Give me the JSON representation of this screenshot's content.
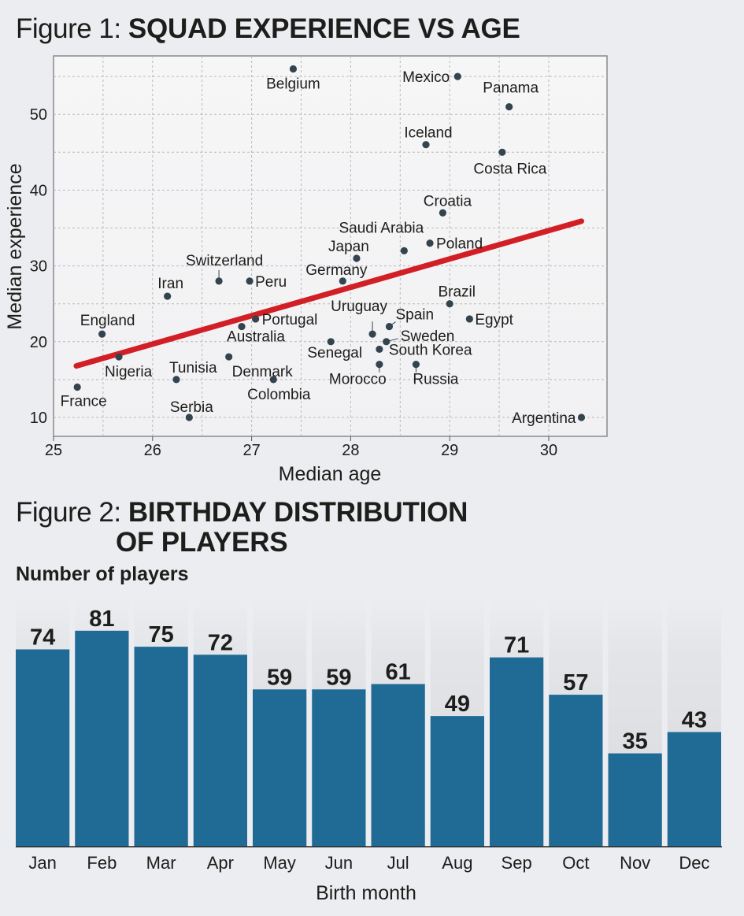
{
  "figure1": {
    "prefix": "Figure 1: ",
    "title": "SQUAD EXPERIENCE VS AGE"
  },
  "figure2": {
    "prefix": "Figure 2: ",
    "title_line1": "BIRTHDAY DISTRIBUTION",
    "title_line2": "OF PLAYERS",
    "ylabel": "Number of players"
  },
  "colors": {
    "point": "#33444f",
    "trend": "#d21f26",
    "bar": "#1f6b95",
    "grid": "#b9b9bd",
    "plot_bg": "#f3f3f4"
  },
  "chart_data": [
    {
      "type": "scatter",
      "xlabel": "Median age",
      "ylabel": "Median experience",
      "xlim": [
        25,
        30.5
      ],
      "ylim": [
        8.5,
        57.5
      ],
      "xticks": [
        25,
        26,
        27,
        28,
        29,
        30
      ],
      "yticks": [
        10,
        20,
        30,
        40,
        50
      ],
      "grid": true,
      "trendline": {
        "x": [
          25.23,
          30.33
        ],
        "y": [
          16.8,
          35.9
        ]
      },
      "points": [
        {
          "label": "Belgium",
          "x": 27.42,
          "y": 56
        },
        {
          "label": "Mexico",
          "x": 29.08,
          "y": 55
        },
        {
          "label": "Panama",
          "x": 29.6,
          "y": 51
        },
        {
          "label": "Iceland",
          "x": 28.76,
          "y": 46
        },
        {
          "label": "Costa Rica",
          "x": 29.53,
          "y": 45
        },
        {
          "label": "Croatia",
          "x": 28.93,
          "y": 37
        },
        {
          "label": "Poland",
          "x": 28.8,
          "y": 33
        },
        {
          "label": "Saudi Arabia",
          "x": 28.54,
          "y": 32
        },
        {
          "label": "Japan",
          "x": 28.06,
          "y": 31
        },
        {
          "label": "Germany",
          "x": 27.92,
          "y": 28
        },
        {
          "label": "Switzerland",
          "x": 26.67,
          "y": 28
        },
        {
          "label": "Peru",
          "x": 26.98,
          "y": 28
        },
        {
          "label": "Iran",
          "x": 26.15,
          "y": 26
        },
        {
          "label": "Brazil",
          "x": 29.0,
          "y": 25
        },
        {
          "label": "Portugal",
          "x": 27.04,
          "y": 23
        },
        {
          "label": "Egypt",
          "x": 29.2,
          "y": 23
        },
        {
          "label": "Australia",
          "x": 26.9,
          "y": 22
        },
        {
          "label": "Spain",
          "x": 28.39,
          "y": 22
        },
        {
          "label": "England",
          "x": 25.49,
          "y": 21
        },
        {
          "label": "Uruguay",
          "x": 28.22,
          "y": 21
        },
        {
          "label": "Senegal",
          "x": 27.8,
          "y": 20
        },
        {
          "label": "Sweden",
          "x": 28.36,
          "y": 20
        },
        {
          "label": "South Korea",
          "x": 28.29,
          "y": 19
        },
        {
          "label": "Nigeria",
          "x": 25.66,
          "y": 18
        },
        {
          "label": "Denmark",
          "x": 26.77,
          "y": 18
        },
        {
          "label": "Morocco",
          "x": 28.29,
          "y": 17
        },
        {
          "label": "Russia",
          "x": 28.66,
          "y": 17
        },
        {
          "label": "Tunisia",
          "x": 26.24,
          "y": 15
        },
        {
          "label": "Colombia",
          "x": 27.22,
          "y": 15
        },
        {
          "label": "France",
          "x": 25.24,
          "y": 14
        },
        {
          "label": "Serbia",
          "x": 26.37,
          "y": 10
        },
        {
          "label": "Argentina",
          "x": 30.33,
          "y": 10
        }
      ]
    },
    {
      "type": "bar",
      "xlabel": "Birth month",
      "ylabel": "Number of players",
      "ylim": [
        0,
        85
      ],
      "categories": [
        "Jan",
        "Feb",
        "Mar",
        "Apr",
        "May",
        "Jun",
        "Jul",
        "Aug",
        "Sep",
        "Oct",
        "Nov",
        "Dec"
      ],
      "values": [
        74,
        81,
        75,
        72,
        59,
        59,
        61,
        49,
        71,
        57,
        35,
        43
      ]
    }
  ]
}
